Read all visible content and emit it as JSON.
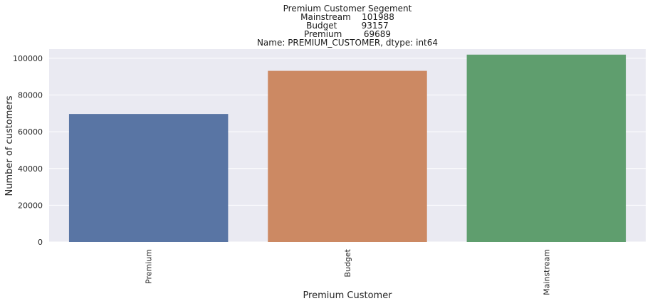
{
  "chart_data": {
    "type": "bar",
    "title_lines": [
      "Premium Customer Segement",
      "Mainstream    101988",
      "Budget         93157",
      "Premium        69689",
      "Name: PREMIUM_CUSTOMER, dtype: int64"
    ],
    "xlabel": "Premium Customer",
    "ylabel": "Number of customers",
    "categories": [
      "Premium",
      "Budget",
      "Mainstream"
    ],
    "values": [
      69689,
      93157,
      101988
    ],
    "colors": [
      "#5975a4",
      "#cc8963",
      "#5f9e6e"
    ],
    "ylim": [
      0,
      105000
    ],
    "yticks": [
      0,
      20000,
      40000,
      60000,
      80000,
      100000
    ],
    "ytick_labels": [
      "0",
      "20000",
      "40000",
      "60000",
      "80000",
      "100000"
    ],
    "plot_background": "#eaeaf2",
    "grid": true,
    "grid_color": "#ffffff"
  }
}
